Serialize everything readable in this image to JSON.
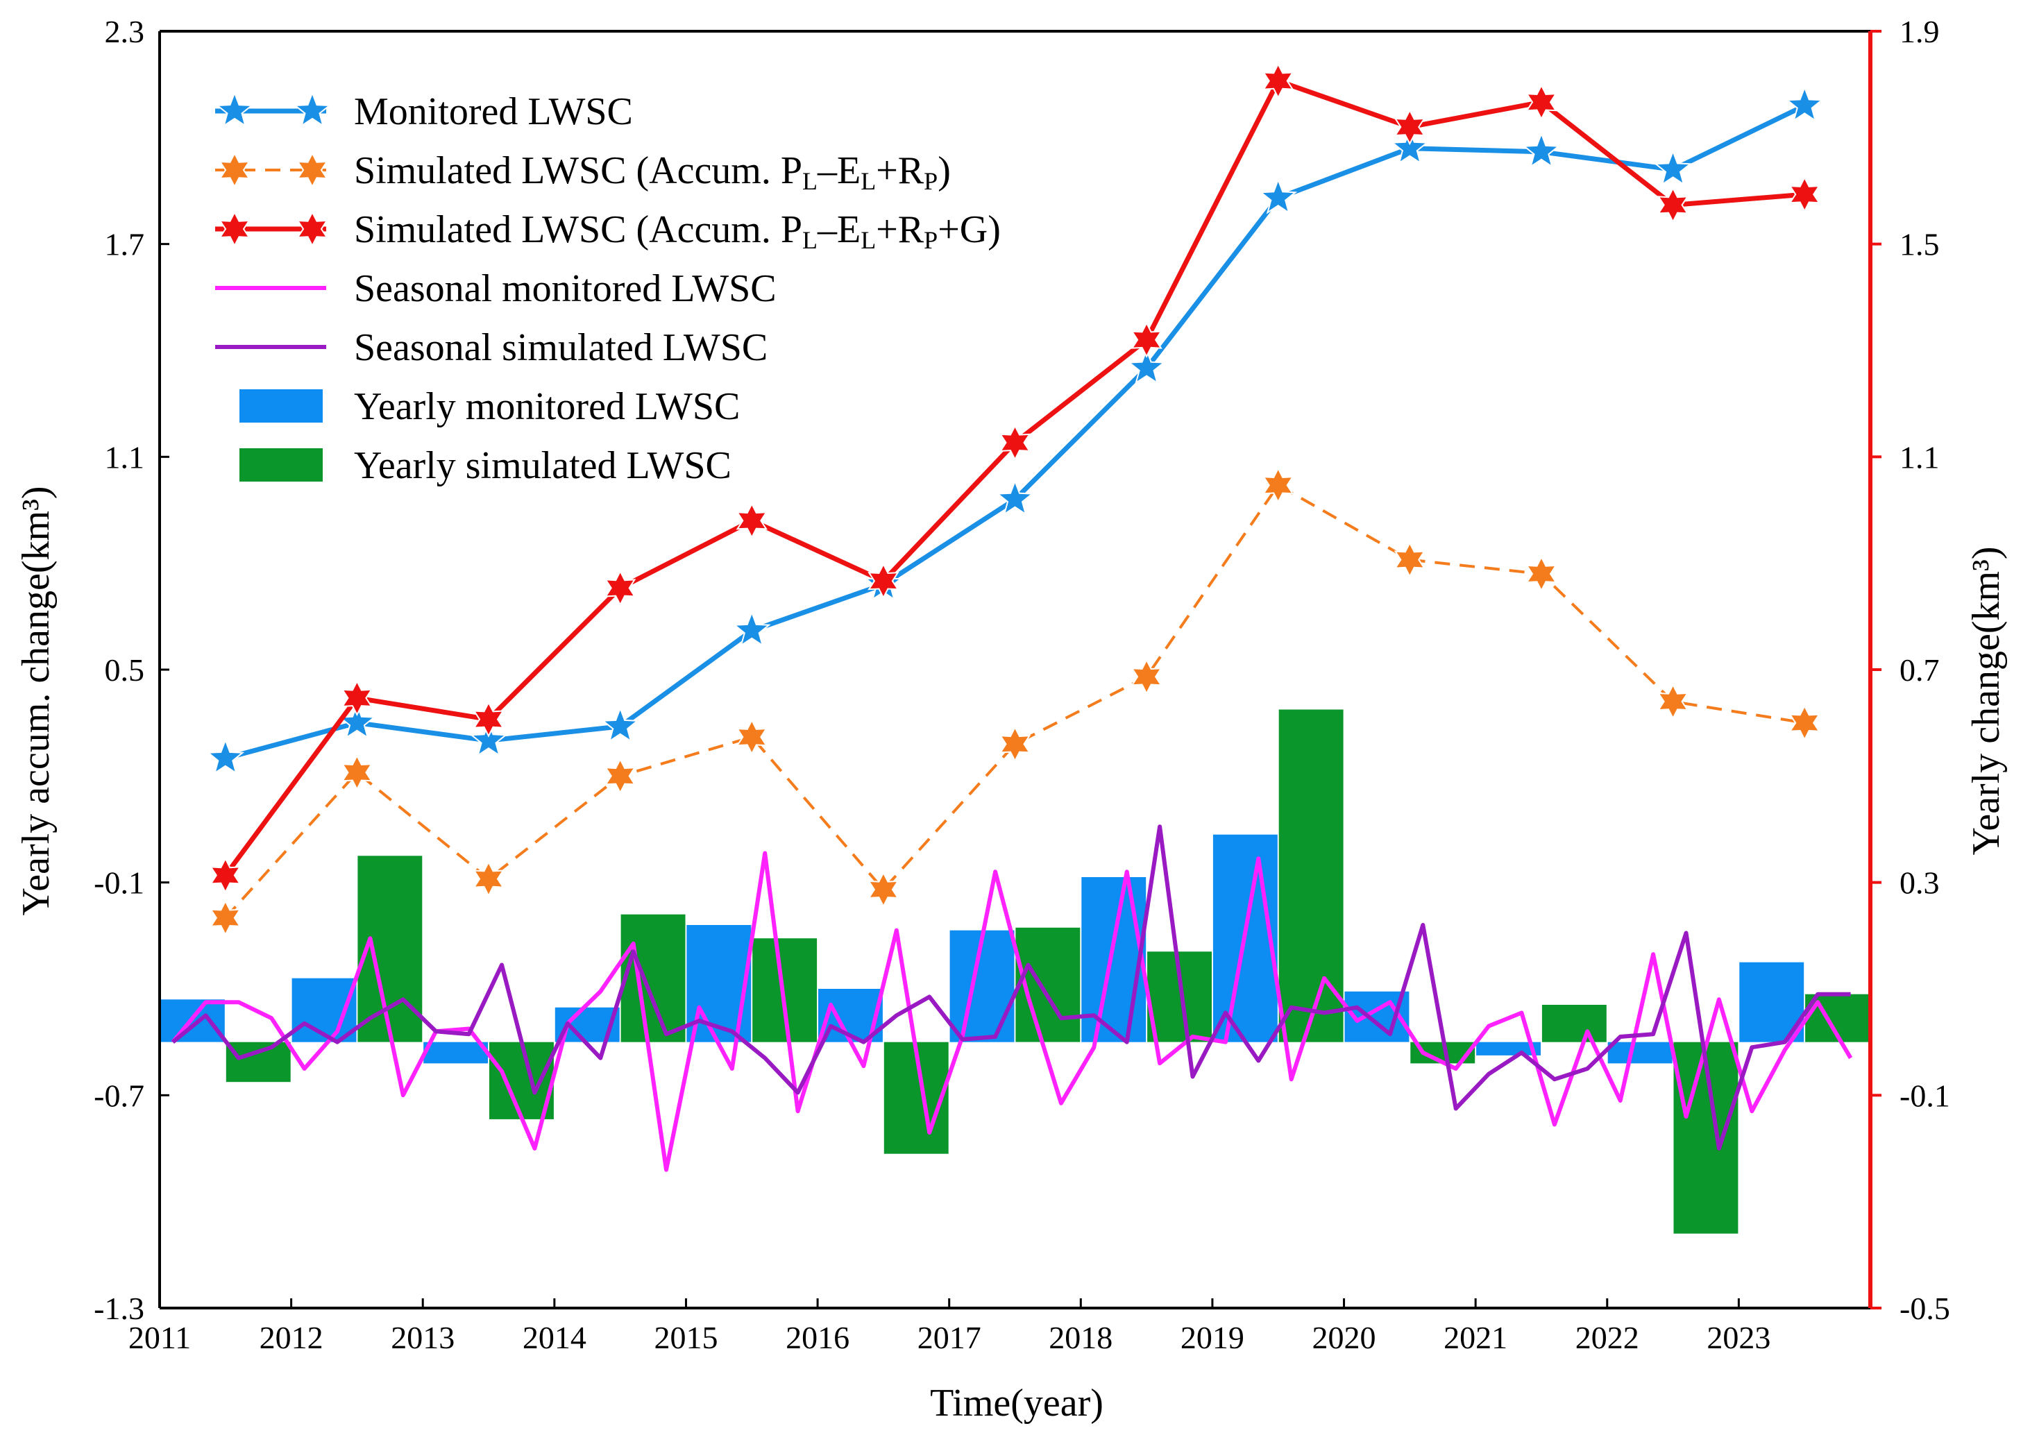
{
  "chart_data": {
    "type": "bar",
    "xlabel": "Time(year)",
    "ylabel_left": "Yearly accum. change(km³)",
    "ylabel_right": "Yearly change(km³)",
    "xlim": [
      2011,
      2024
    ],
    "x_ticks": [
      2011,
      2012,
      2013,
      2014,
      2015,
      2016,
      2017,
      2018,
      2019,
      2020,
      2021,
      2022,
      2023
    ],
    "ylim_left": [
      -1.3,
      2.3
    ],
    "yticks_left": [
      -1.3,
      -0.7,
      -0.1,
      0.5,
      1.1,
      1.7,
      2.3
    ],
    "ylim_right": [
      -0.5,
      1.9
    ],
    "yticks_right": [
      -0.5,
      -0.1,
      0.3,
      0.7,
      1.1,
      1.5,
      1.9
    ],
    "grid": false,
    "legend_position": "top-left",
    "colors": {
      "monitored": "#1a8fe6",
      "simulated_plr": "#f57c1c",
      "simulated_plrg": "#ee1111",
      "seasonal_monitored": "#ff22ff",
      "seasonal_simulated": "#9919c2",
      "yearly_monitored_bar": "#0d8cf2",
      "yearly_simulated_bar": "#0a962a",
      "right_axis": "#ee1111"
    },
    "line_series": [
      {
        "key": "monitored",
        "name": "Monitored LWSC",
        "axis": "left",
        "marker": "star5",
        "dash": false,
        "x": [
          2011.5,
          2012.5,
          2013.5,
          2014.5,
          2015.5,
          2016.5,
          2017.5,
          2018.5,
          2019.5,
          2020.5,
          2021.5,
          2022.5,
          2023.5
        ],
        "values": [
          0.25,
          0.35,
          0.3,
          0.34,
          0.61,
          0.74,
          0.98,
          1.35,
          1.83,
          1.97,
          1.96,
          1.91,
          2.09
        ]
      },
      {
        "key": "simulated_plr",
        "name_parts": [
          "Simulated LWSC (Accum. P",
          "L",
          "–E",
          "L",
          "+R",
          "P",
          ")"
        ],
        "axis": "left",
        "marker": "star6",
        "dash": true,
        "x": [
          2011.5,
          2012.5,
          2013.5,
          2014.5,
          2015.5,
          2016.5,
          2017.5,
          2018.5,
          2019.5,
          2020.5,
          2021.5,
          2022.5,
          2023.5
        ],
        "values": [
          -0.2,
          0.21,
          -0.09,
          0.2,
          0.31,
          -0.12,
          0.29,
          0.48,
          1.02,
          0.81,
          0.77,
          0.41,
          0.35
        ]
      },
      {
        "key": "simulated_plrg",
        "name_parts": [
          "Simulated LWSC (Accum. P",
          "L",
          "–E",
          "L",
          "+R",
          "P",
          "+G)"
        ],
        "axis": "left",
        "marker": "star6",
        "dash": false,
        "x": [
          2011.5,
          2012.5,
          2013.5,
          2014.5,
          2015.5,
          2016.5,
          2017.5,
          2018.5,
          2019.5,
          2020.5,
          2021.5,
          2022.5,
          2023.5
        ],
        "values": [
          -0.08,
          0.42,
          0.36,
          0.73,
          0.92,
          0.75,
          1.14,
          1.43,
          2.16,
          2.03,
          2.1,
          1.81,
          1.84
        ]
      }
    ],
    "bar_series": [
      {
        "key": "yearly_monitored",
        "name": "Yearly monitored LWSC",
        "axis": "right",
        "offset": -0.25,
        "x": [
          2011.5,
          2012.5,
          2013.5,
          2014.5,
          2015.5,
          2016.5,
          2017.5,
          2018.5,
          2019.5,
          2020.5,
          2021.5,
          2022.5,
          2023.5
        ],
        "values": [
          0.08,
          0.12,
          -0.04,
          0.065,
          0.22,
          0.1,
          0.21,
          0.31,
          0.39,
          0.095,
          -0.025,
          -0.04,
          0.15
        ]
      },
      {
        "key": "yearly_simulated",
        "name": "Yearly simulated LWSC",
        "axis": "right",
        "offset": 0.25,
        "x": [
          2011.5,
          2012.5,
          2013.5,
          2014.5,
          2015.5,
          2016.5,
          2017.5,
          2018.5,
          2019.5,
          2020.5,
          2021.5,
          2022.5,
          2023.5
        ],
        "values": [
          -0.075,
          0.35,
          -0.145,
          0.24,
          0.195,
          -0.21,
          0.215,
          0.17,
          0.625,
          -0.04,
          0.07,
          -0.36,
          0.09
        ]
      }
    ],
    "seasonal_series": [
      {
        "key": "seasonal_monitored",
        "name": "Seasonal monitored LWSC",
        "axis": "right",
        "x": [
          2011.1,
          2011.35,
          2011.6,
          2011.85,
          2012.1,
          2012.35,
          2012.6,
          2012.85,
          2013.1,
          2013.35,
          2013.6,
          2013.85,
          2014.1,
          2014.35,
          2014.6,
          2014.85,
          2015.1,
          2015.35,
          2015.6,
          2015.85,
          2016.1,
          2016.35,
          2016.6,
          2016.85,
          2017.1,
          2017.35,
          2017.6,
          2017.85,
          2018.1,
          2018.35,
          2018.6,
          2018.85,
          2019.1,
          2019.35,
          2019.6,
          2019.85,
          2020.1,
          2020.35,
          2020.6,
          2020.85,
          2021.1,
          2021.35,
          2021.6,
          2021.85,
          2022.1,
          2022.35,
          2022.6,
          2022.85,
          2023.1,
          2023.35,
          2023.6,
          2023.85
        ],
        "values": [
          0.0,
          0.075,
          0.075,
          0.045,
          -0.05,
          0.02,
          0.195,
          -0.1,
          0.02,
          0.025,
          -0.055,
          -0.2,
          0.035,
          0.095,
          0.185,
          -0.24,
          0.065,
          -0.05,
          0.355,
          -0.13,
          0.07,
          -0.045,
          0.21,
          -0.17,
          0.01,
          0.32,
          0.085,
          -0.115,
          -0.01,
          0.32,
          -0.04,
          0.01,
          0.0,
          0.345,
          -0.07,
          0.12,
          0.04,
          0.075,
          -0.02,
          -0.05,
          0.03,
          0.055,
          -0.155,
          0.02,
          -0.11,
          0.165,
          -0.14,
          0.08,
          -0.13,
          -0.015,
          0.075,
          -0.03
        ]
      },
      {
        "key": "seasonal_simulated",
        "name": "Seasonal simulated LWSC",
        "axis": "right",
        "x": [
          2011.1,
          2011.35,
          2011.6,
          2011.85,
          2012.1,
          2012.35,
          2012.6,
          2012.85,
          2013.1,
          2013.35,
          2013.6,
          2013.85,
          2014.1,
          2014.35,
          2014.6,
          2014.85,
          2015.1,
          2015.35,
          2015.6,
          2015.85,
          2016.1,
          2016.35,
          2016.6,
          2016.85,
          2017.1,
          2017.35,
          2017.6,
          2017.85,
          2018.1,
          2018.35,
          2018.6,
          2018.85,
          2019.1,
          2019.35,
          2019.6,
          2019.85,
          2020.1,
          2020.35,
          2020.6,
          2020.85,
          2021.1,
          2021.35,
          2021.6,
          2021.85,
          2022.1,
          2022.35,
          2022.6,
          2022.85,
          2023.1,
          2023.35,
          2023.6,
          2023.85
        ],
        "values": [
          0.0,
          0.05,
          -0.03,
          -0.01,
          0.035,
          0.0,
          0.045,
          0.08,
          0.02,
          0.015,
          0.145,
          -0.095,
          0.035,
          -0.03,
          0.17,
          0.015,
          0.04,
          0.02,
          -0.03,
          -0.095,
          0.03,
          0.0,
          0.05,
          0.085,
          0.005,
          0.01,
          0.145,
          0.045,
          0.05,
          0.0,
          0.405,
          -0.065,
          0.055,
          -0.035,
          0.065,
          0.055,
          0.065,
          0.015,
          0.22,
          -0.125,
          -0.06,
          -0.02,
          -0.07,
          -0.05,
          0.01,
          0.015,
          0.205,
          -0.2,
          -0.01,
          0.0,
          0.09,
          0.09
        ]
      }
    ],
    "legend": [
      {
        "key": "monitored",
        "label": "Monitored LWSC"
      },
      {
        "key": "simulated_plr",
        "label_parts": [
          "Simulated LWSC (Accum. P",
          "L",
          "–E",
          "L",
          "+R",
          "P",
          ")"
        ]
      },
      {
        "key": "simulated_plrg",
        "label_parts": [
          "Simulated LWSC (Accum. P",
          "L",
          "–E",
          "L",
          "+R",
          "P",
          "+G)"
        ]
      },
      {
        "key": "seasonal_monitored",
        "label": "Seasonal monitored LWSC"
      },
      {
        "key": "seasonal_simulated",
        "label": "Seasonal simulated LWSC"
      },
      {
        "key": "yearly_monitored",
        "label": "Yearly monitored LWSC"
      },
      {
        "key": "yearly_simulated",
        "label": "Yearly simulated LWSC"
      }
    ]
  }
}
